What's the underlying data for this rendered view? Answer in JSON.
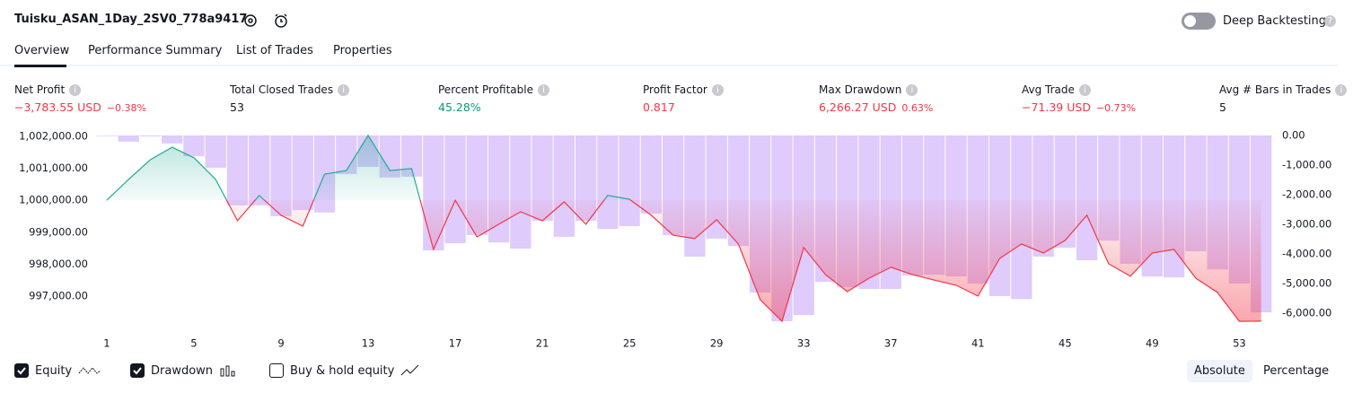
{
  "header": {
    "title": "Tuisku_ASAN_1Day_2SV0_778a9417",
    "toggle": "Deep Backtesting"
  },
  "tabs": [
    "Overview",
    "Performance Summary",
    "List of Trades",
    "Properties"
  ],
  "stats": [
    {
      "label": "Net Profit",
      "value": "−3,783.55 USD",
      "percent": "−0.38%"
    },
    {
      "label": "Total Closed Trades",
      "value": "53"
    },
    {
      "label": "Percent Profitable",
      "value": "45.28%"
    },
    {
      "label": "Profit Factor",
      "value": "0.817"
    },
    {
      "label": "Max Drawdown",
      "value": "6,266.27 USD",
      "percent": "0.63%"
    },
    {
      "label": "Avg Trade",
      "value": "−71.39 USD",
      "percent": "−0.73%"
    },
    {
      "label": "Avg # Bars in Trades",
      "value": "5"
    }
  ],
  "chart_data": {
    "type": "line",
    "x": [
      1,
      2,
      3,
      4,
      5,
      6,
      7,
      8,
      9,
      10,
      11,
      12,
      13,
      14,
      15,
      16,
      17,
      18,
      19,
      20,
      21,
      22,
      23,
      24,
      25,
      26,
      27,
      28,
      29,
      30,
      31,
      32,
      33,
      34,
      35,
      36,
      37,
      38,
      39,
      40,
      41,
      42,
      43,
      44,
      45,
      46,
      47,
      48,
      49,
      50,
      51,
      52,
      53,
      54
    ],
    "xlim": [
      0.55,
      54.55
    ],
    "xticks": [
      1,
      5,
      9,
      13,
      17,
      21,
      25,
      29,
      33,
      37,
      41,
      45,
      49,
      53
    ],
    "ylim": [
      996100,
      1002140
    ],
    "yticks": [
      {
        "value": 1002000,
        "label": "1,002,000.00"
      },
      {
        "value": 1001000,
        "label": "1,001,000.00"
      },
      {
        "value": 1000000,
        "label": "1,000,000.00"
      },
      {
        "value": 999000,
        "label": "999,000.00"
      },
      {
        "value": 998000,
        "label": "998,000.00"
      },
      {
        "value": 997000,
        "label": "997,000.00"
      }
    ],
    "y2lim": [
      -6390,
      120
    ],
    "y2ticks": [
      {
        "value": 0,
        "label": "0.00"
      },
      {
        "value": -1000,
        "label": "-1,000.00"
      },
      {
        "value": -2000,
        "label": "-2,000.00"
      },
      {
        "value": -3000,
        "label": "-3,000.00"
      },
      {
        "value": -4000,
        "label": "-4,000.00"
      },
      {
        "value": -5000,
        "label": "-5,000.00"
      },
      {
        "value": -6000,
        "label": "-6,000.00"
      }
    ],
    "series": [
      {
        "name": "Equity",
        "type": "line",
        "color": "#22ab94",
        "color_below": "#f23645",
        "checked": true,
        "values": [
          1000000,
          1000650,
          1001270,
          1001660,
          1001330,
          1000650,
          999360,
          1000150,
          999530,
          999190,
          1000820,
          1000930,
          1002030,
          1000930,
          1000990,
          998460,
          1000000,
          998850,
          999250,
          999640,
          999360,
          999950,
          999250,
          1000150,
          1000030,
          999530,
          998910,
          998800,
          999390,
          998630,
          996890,
          996210,
          998520,
          997670,
          997140,
          997560,
          997900,
          997670,
          997500,
          997340,
          997000,
          998180,
          998630,
          998350,
          998740,
          999530,
          998010,
          997620,
          998350,
          998460,
          997560,
          997110,
          996210,
          996216
        ]
      },
      {
        "name": "Drawdown",
        "type": "bar",
        "axis": "y2",
        "color": "#d9c2fb",
        "checked": true,
        "values": [
          -20,
          -210,
          -30,
          -270,
          -700,
          -1090,
          -2360,
          -2360,
          -2730,
          -2520,
          -2600,
          -1300,
          -1060,
          -1420,
          -1390,
          -3880,
          -3640,
          -3360,
          -3610,
          -3820,
          -2880,
          -3420,
          -2880,
          -3150,
          -3060,
          -2640,
          -3360,
          -4090,
          -3480,
          -3730,
          -5300,
          -6270,
          -6060,
          -4940,
          -5120,
          -5180,
          -5180,
          -4730,
          -4700,
          -4760,
          -5000,
          -5420,
          -5520,
          -4090,
          -3790,
          -4210,
          -3550,
          -4330,
          -4760,
          -4790,
          -3910,
          -4520,
          -5000,
          -5970
        ]
      }
    ],
    "extra_legend": {
      "name": "Buy & hold equity",
      "checked": false
    }
  },
  "buttons": [
    "Absolute",
    "Percentage"
  ]
}
